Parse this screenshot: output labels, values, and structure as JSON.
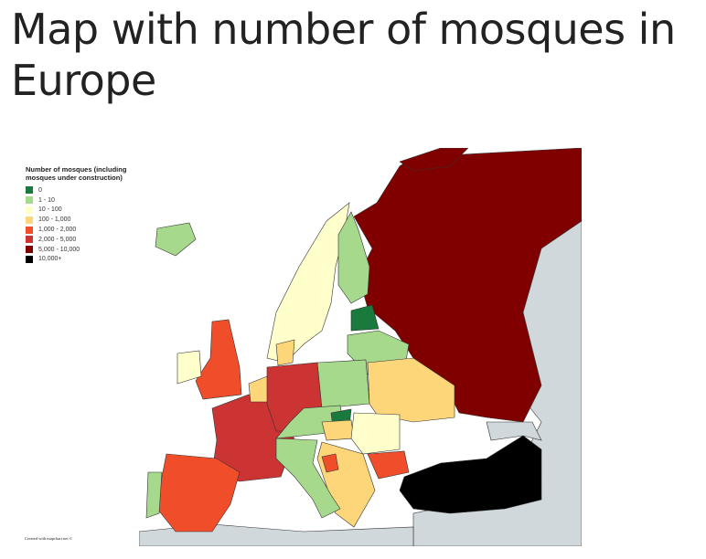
{
  "title": "Map with number of mosques in Europe",
  "legend": {
    "title": "Number of mosques (including mosques under construction)",
    "items": [
      {
        "label": "0",
        "color": "#1a7a3e"
      },
      {
        "label": "1 - 10",
        "color": "#a6d98c"
      },
      {
        "label": "10 - 100",
        "color": "#ffffcc"
      },
      {
        "label": "100 - 1,000",
        "color": "#fdd67a"
      },
      {
        "label": "1,000 - 2,000",
        "color": "#f04e2b"
      },
      {
        "label": "2,000 - 5,000",
        "color": "#cc3333"
      },
      {
        "label": "5,000 - 10,000",
        "color": "#800000"
      },
      {
        "label": "10,000+",
        "color": "#000000"
      }
    ]
  },
  "credit": "Created with mapchart.net ©",
  "colors": {
    "non_europe": "#d0d8db",
    "border": "#333333"
  }
}
